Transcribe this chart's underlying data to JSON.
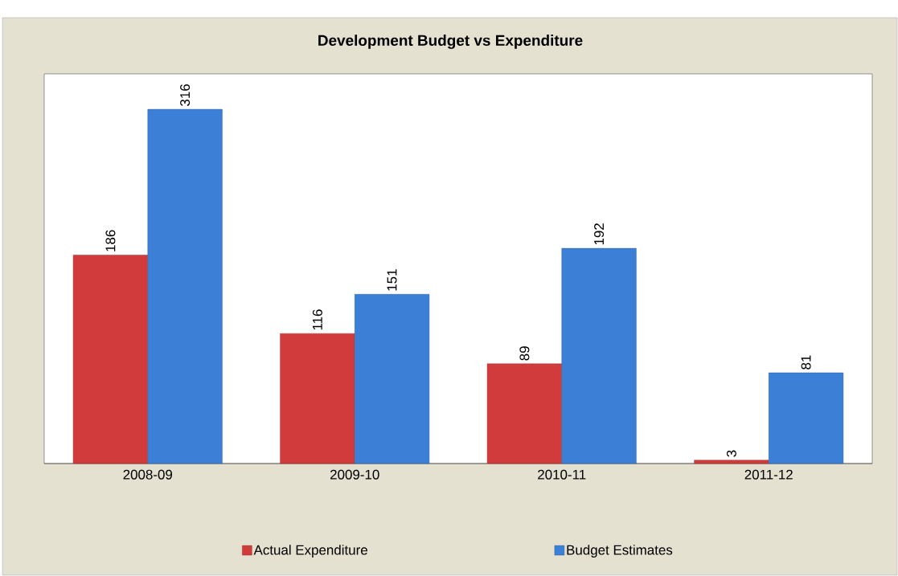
{
  "chart_data": {
    "type": "bar",
    "title": "Development Budget vs Expenditure",
    "categories": [
      "2008-09",
      "2009-10",
      "2010-11",
      "2011-12"
    ],
    "series": [
      {
        "name": "Actual Expenditure",
        "color": "#d23b3b",
        "values": [
          186,
          116,
          89,
          3
        ]
      },
      {
        "name": "Budget Estimates",
        "color": "#3b7fd6",
        "values": [
          316,
          151,
          192,
          81
        ]
      }
    ],
    "data_labels": true,
    "legend": "bottom"
  }
}
